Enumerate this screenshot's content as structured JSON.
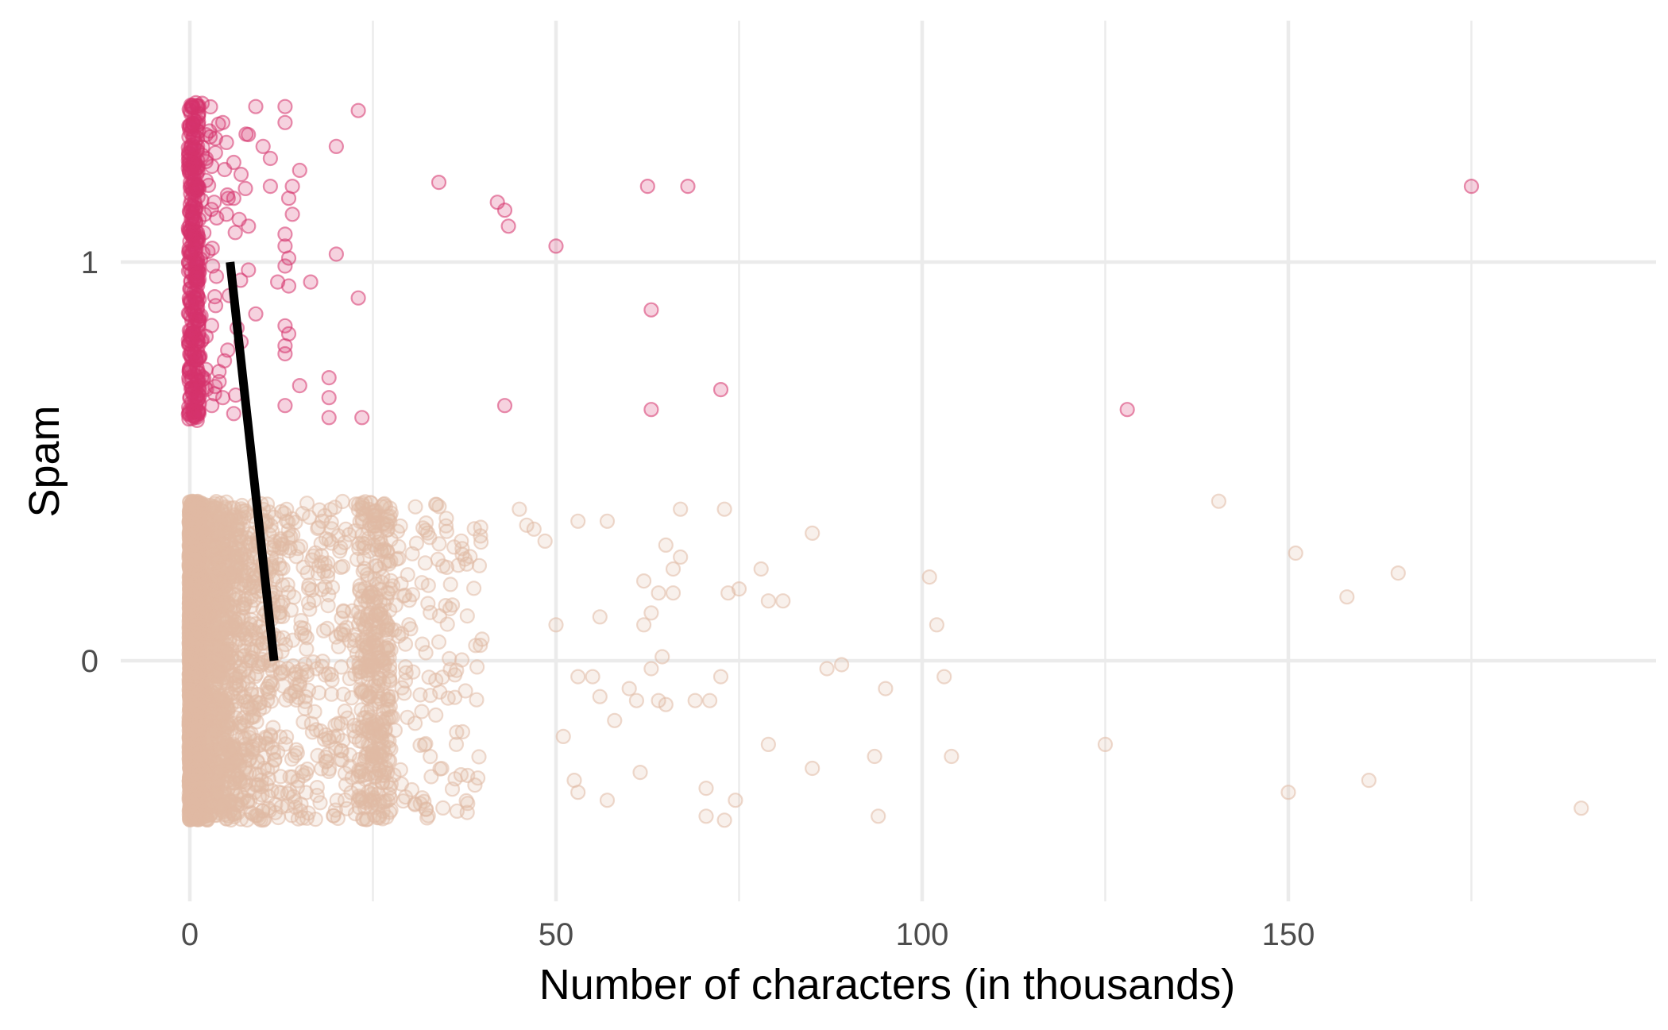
{
  "chart_data": {
    "type": "scatter",
    "title": "",
    "xlabel": "Number of characters (in thousands)",
    "ylabel": "Spam",
    "xlim": [
      -4.6,
      200
    ],
    "ylim": [
      -0.6,
      1.6
    ],
    "x_ticks": [
      0,
      50,
      100,
      150
    ],
    "x_minor_ticks": [
      25,
      75,
      125,
      175
    ],
    "x_tick_labels": [
      "0",
      "50",
      "100",
      "150"
    ],
    "y_ticks": [
      0,
      1
    ],
    "y_tick_labels": [
      "0",
      "1"
    ],
    "grid": true,
    "legend": "none",
    "jitter": "vertical jitter of about ±0.4 around each class value",
    "colors": {
      "spam": "#d6336c",
      "not_spam": "#e0b9a4",
      "fit_line": "#000000",
      "grid": "#ebebeb"
    },
    "series": [
      {
        "class_value": 1,
        "color": "#d6336c",
        "opacity": 0.25,
        "visible_points": [
          [
            9,
            1.39
          ],
          [
            13,
            1.39
          ],
          [
            23,
            1.38
          ],
          [
            13,
            1.35
          ],
          [
            20,
            1.29
          ],
          [
            10,
            1.29
          ],
          [
            11,
            1.26
          ],
          [
            15,
            1.23
          ],
          [
            34,
            1.2
          ],
          [
            62.5,
            1.19
          ],
          [
            68,
            1.19
          ],
          [
            175,
            1.19
          ],
          [
            11,
            1.19
          ],
          [
            14,
            1.19
          ],
          [
            6,
            1.16
          ],
          [
            13.5,
            1.16
          ],
          [
            42,
            1.15
          ],
          [
            43,
            1.13
          ],
          [
            14,
            1.12
          ],
          [
            43.5,
            1.09
          ],
          [
            8,
            1.09
          ],
          [
            13,
            1.07
          ],
          [
            50,
            1.04
          ],
          [
            13,
            1.04
          ],
          [
            13.5,
            1.01
          ],
          [
            20,
            1.02
          ],
          [
            13,
            0.99
          ],
          [
            8,
            0.98
          ],
          [
            12,
            0.95
          ],
          [
            13.5,
            0.94
          ],
          [
            16.5,
            0.95
          ],
          [
            23,
            0.91
          ],
          [
            9,
            0.87
          ],
          [
            63,
            0.88
          ],
          [
            13,
            0.84
          ],
          [
            13.5,
            0.82
          ],
          [
            13,
            0.79
          ],
          [
            13,
            0.77
          ],
          [
            19,
            0.71
          ],
          [
            15,
            0.69
          ],
          [
            72.5,
            0.68
          ],
          [
            19,
            0.66
          ],
          [
            13,
            0.64
          ],
          [
            43,
            0.64
          ],
          [
            128,
            0.63
          ],
          [
            63,
            0.63
          ],
          [
            19,
            0.61
          ],
          [
            23.5,
            0.61
          ],
          [
            4,
            0.7
          ],
          [
            4.5,
            0.66
          ],
          [
            6,
            0.62
          ],
          [
            3,
            0.64
          ],
          [
            7,
            0.8
          ],
          [
            5,
            1.12
          ],
          [
            7,
            1.22
          ],
          [
            6,
            1.25
          ],
          [
            5,
            1.3
          ],
          [
            4.5,
            1.35
          ],
          [
            3.5,
            1.31
          ],
          [
            3,
            1.24
          ]
        ],
        "note": "dense cluster of spam points at x between 0 and 3 thousand, spread over the jitter band 0.6 to 1.4"
      },
      {
        "class_value": 0,
        "color": "#e0b9a4",
        "opacity": 0.25,
        "visible_points": [
          [
            140.5,
            0.4
          ],
          [
            151,
            0.27
          ],
          [
            165,
            0.22
          ],
          [
            158,
            0.16
          ],
          [
            101,
            0.21
          ],
          [
            102,
            0.09
          ],
          [
            85,
            0.32
          ],
          [
            73,
            0.38
          ],
          [
            67,
            0.38
          ],
          [
            78,
            0.23
          ],
          [
            75,
            0.18
          ],
          [
            73.5,
            0.17
          ],
          [
            79,
            0.15
          ],
          [
            81,
            0.15
          ],
          [
            103,
            -0.04
          ],
          [
            95,
            -0.07
          ],
          [
            89,
            -0.01
          ],
          [
            87,
            -0.02
          ],
          [
            125,
            -0.21
          ],
          [
            104,
            -0.24
          ],
          [
            93.5,
            -0.24
          ],
          [
            85,
            -0.27
          ],
          [
            79,
            -0.21
          ],
          [
            70.5,
            -0.32
          ],
          [
            74.5,
            -0.35
          ],
          [
            70.5,
            -0.39
          ],
          [
            73,
            -0.4
          ],
          [
            94,
            -0.39
          ],
          [
            150,
            -0.33
          ],
          [
            161,
            -0.3
          ],
          [
            190,
            -0.37
          ],
          [
            72.5,
            -0.04
          ],
          [
            69,
            -0.1
          ],
          [
            71,
            -0.1
          ],
          [
            64,
            -0.1
          ],
          [
            65,
            -0.11
          ],
          [
            63,
            -0.02
          ],
          [
            61,
            -0.1
          ],
          [
            61.5,
            -0.28
          ],
          [
            57,
            -0.35
          ],
          [
            58,
            -0.15
          ],
          [
            60,
            -0.07
          ],
          [
            55,
            -0.04
          ],
          [
            53,
            -0.04
          ],
          [
            56,
            -0.09
          ],
          [
            51,
            -0.19
          ],
          [
            52.5,
            -0.3
          ],
          [
            53,
            -0.33
          ],
          [
            56,
            0.11
          ],
          [
            57,
            0.35
          ],
          [
            53,
            0.35
          ],
          [
            67,
            0.26
          ],
          [
            65,
            0.29
          ],
          [
            66,
            0.23
          ],
          [
            62,
            0.2
          ],
          [
            64,
            0.17
          ],
          [
            66,
            0.17
          ],
          [
            62,
            0.09
          ],
          [
            63,
            0.12
          ],
          [
            64.5,
            0.01
          ],
          [
            50,
            0.09
          ],
          [
            48.5,
            0.3
          ],
          [
            45,
            0.38
          ],
          [
            46,
            0.34
          ],
          [
            47,
            0.33
          ]
        ],
        "note": "very dense cluster of non-spam points at x between 0 and 12 thousand, a second dense vertical band near x = 25 thousand, thinning out toward x = 40 thousand, spread over the jitter band -0.4 to 0.4"
      }
    ],
    "fit_line": {
      "type": "line",
      "color": "#000000",
      "points": [
        [
          5.5,
          1.0
        ],
        [
          11.5,
          0.0
        ]
      ]
    }
  }
}
